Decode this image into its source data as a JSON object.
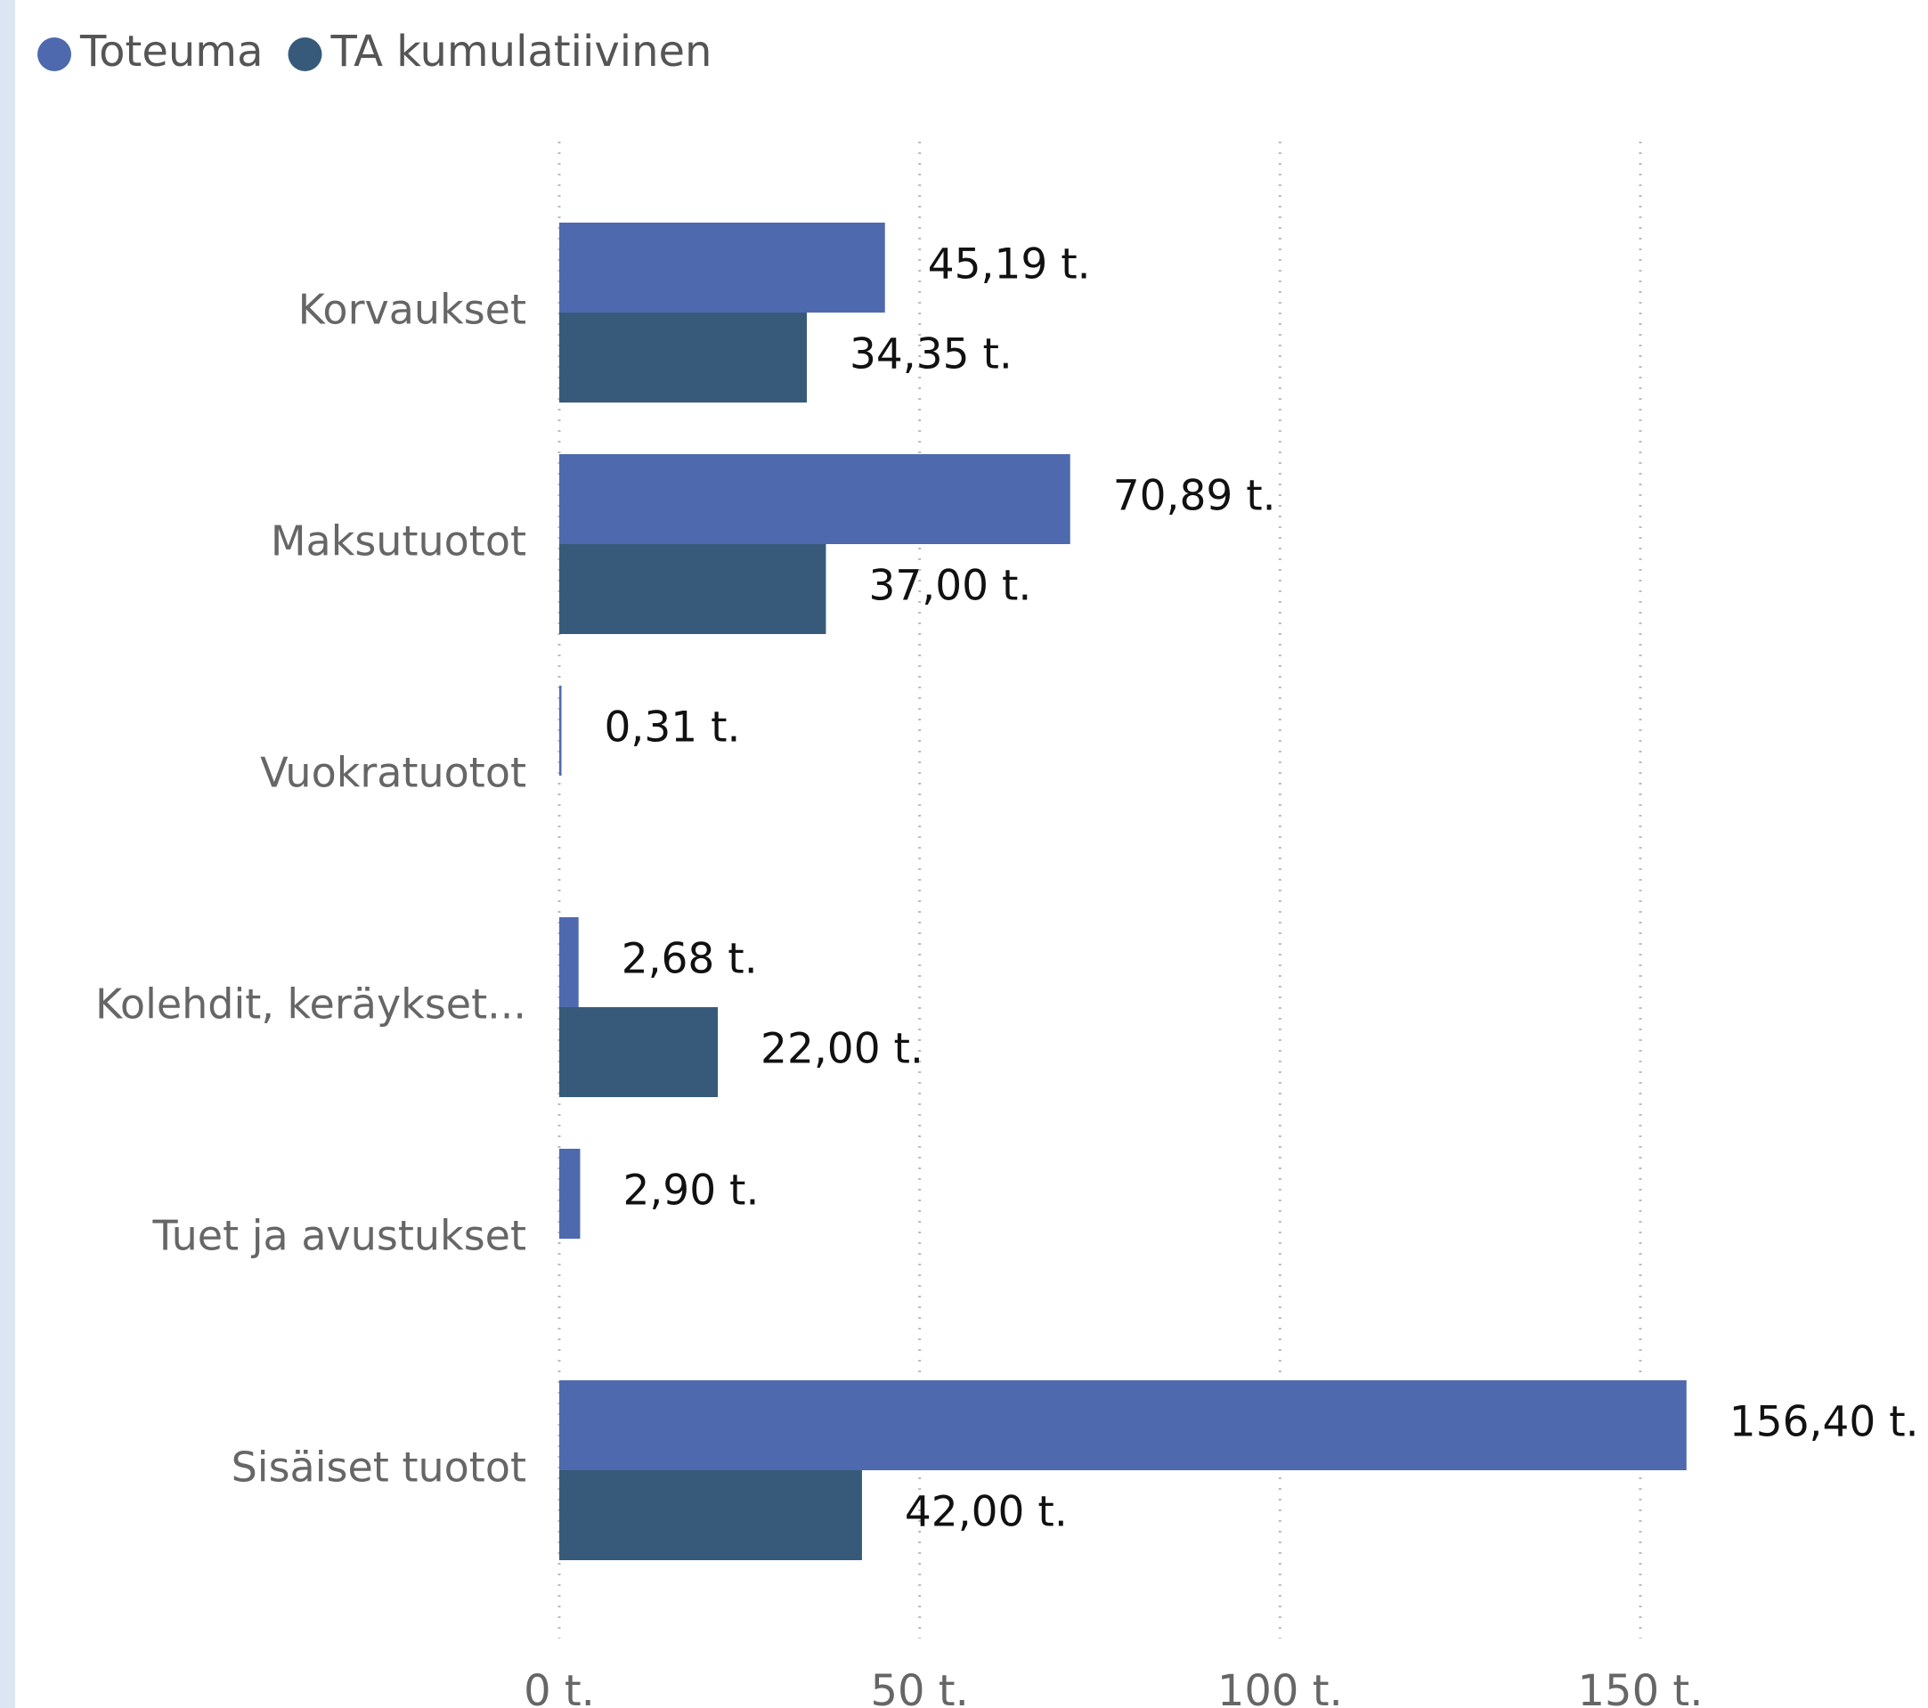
{
  "chart_data": {
    "type": "bar",
    "orientation": "horizontal",
    "categories": [
      "Korvaukset",
      "Maksutuotot",
      "Vuokratuotot",
      "Kolehdit, keräykset...",
      "Tuet ja avustukset",
      "Sisäiset tuotot"
    ],
    "series": [
      {
        "name": "Toteuma",
        "color": "#4e69ad",
        "values": [
          45.19,
          70.89,
          0.31,
          2.68,
          2.9,
          156.4
        ],
        "value_labels": [
          "45,19 t.",
          "70,89 t.",
          "0,31 t.",
          "2,68 t.",
          "2,90 t.",
          "156,40 t."
        ]
      },
      {
        "name": "TA kumulatiivinen",
        "color": "#375a7a",
        "values": [
          34.35,
          37.0,
          null,
          22.0,
          null,
          42.0
        ],
        "value_labels": [
          "34,35 t.",
          "37,00 t.",
          null,
          "22,00 t.",
          null,
          "42,00 t."
        ]
      }
    ],
    "xlim": [
      0,
      190
    ],
    "xticks": [
      {
        "value": 0,
        "label": "0 t."
      },
      {
        "value": 50,
        "label": "50 t."
      },
      {
        "value": 100,
        "label": "100 t."
      },
      {
        "value": 150,
        "label": "150 t."
      }
    ],
    "grid": true,
    "legend": "top-left"
  }
}
